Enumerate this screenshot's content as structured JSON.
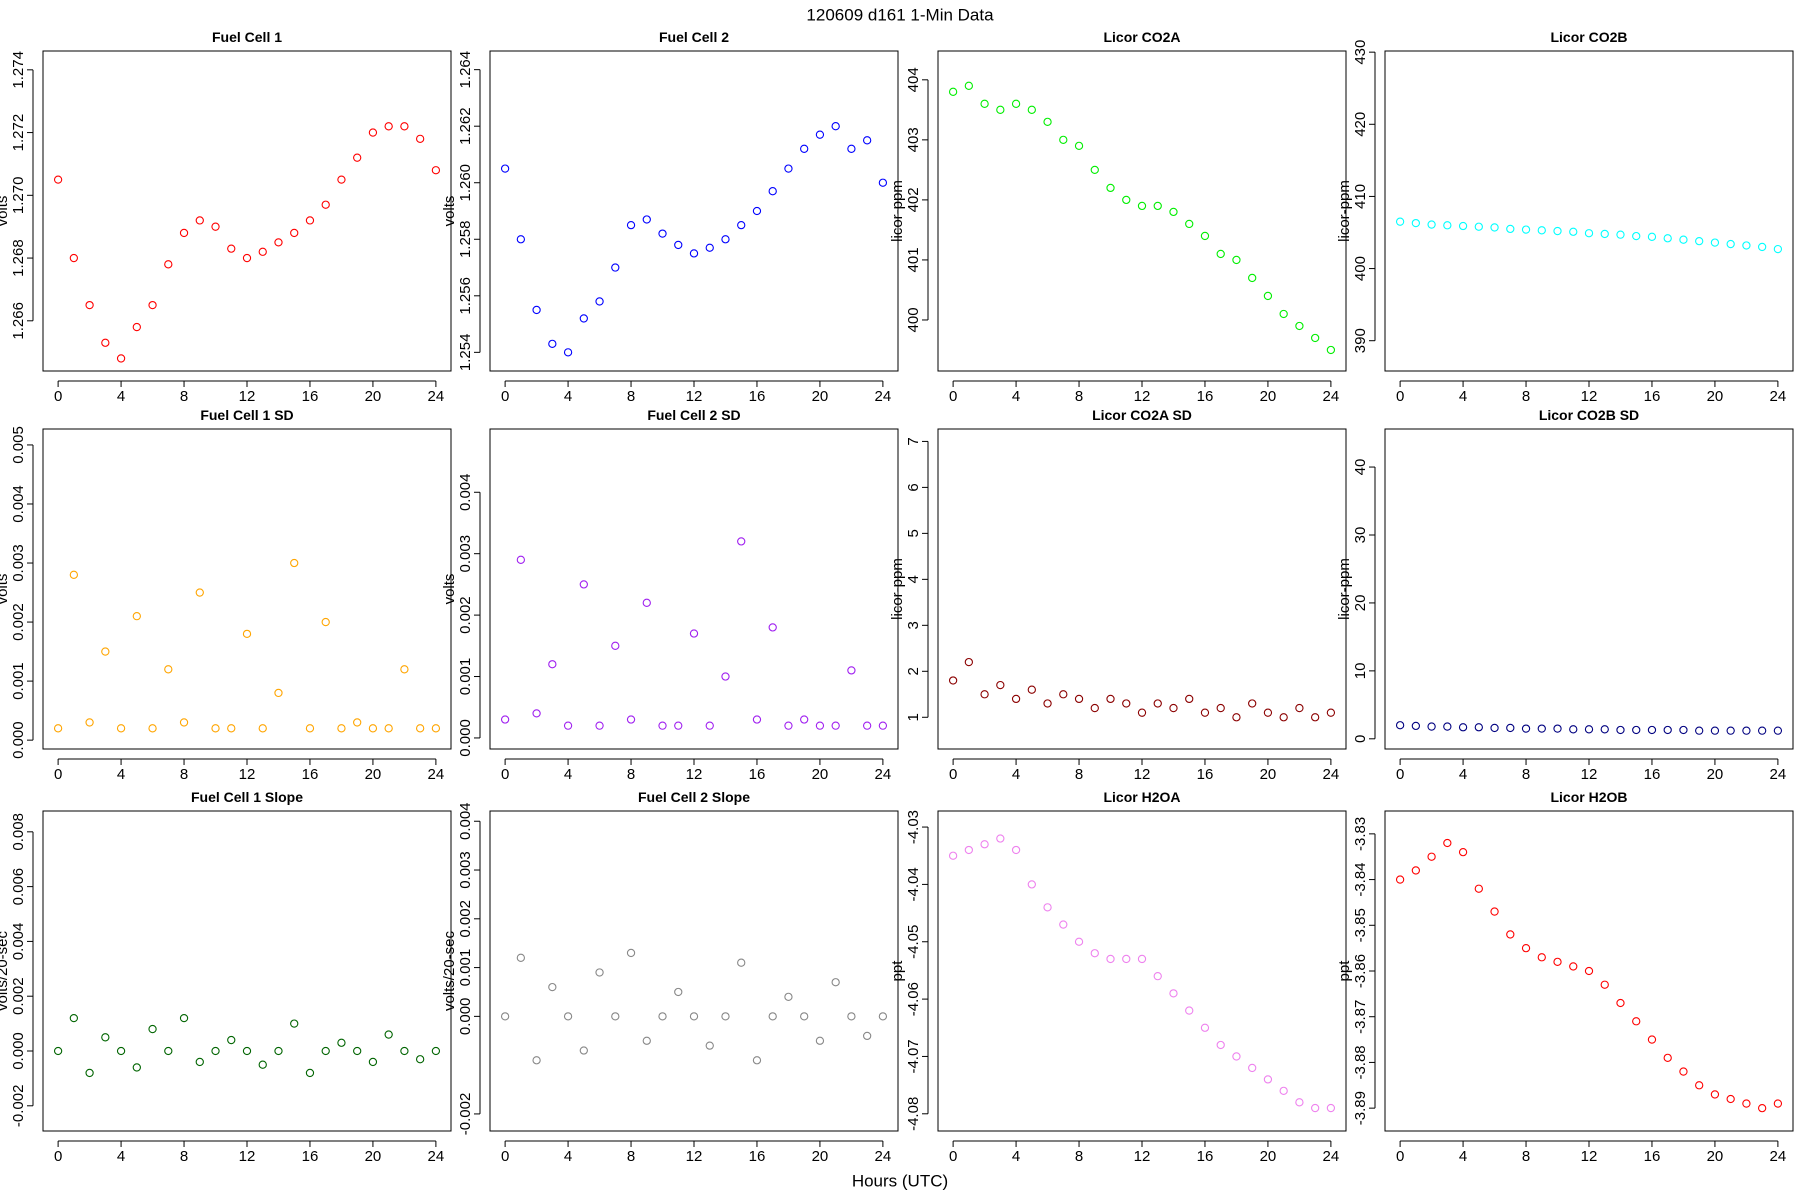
{
  "title": "120609   d161   1-Min Data",
  "xlabel": "Hours (UTC)",
  "chart_data": [
    {
      "type": "scatter",
      "title": "Fuel Cell 1",
      "ylabel": "volts",
      "color": "#ff0000",
      "x": [
        0,
        1,
        2,
        3,
        4,
        5,
        6,
        7,
        8,
        9,
        10,
        11,
        12,
        13,
        14,
        15,
        16,
        17,
        18,
        19,
        20,
        21,
        22,
        23,
        24
      ],
      "values": [
        1.2705,
        1.268,
        1.2665,
        1.2653,
        1.2648,
        1.2658,
        1.2665,
        1.2678,
        1.2688,
        1.2692,
        1.269,
        1.2683,
        1.268,
        1.2682,
        1.2685,
        1.2688,
        1.2692,
        1.2697,
        1.2705,
        1.2712,
        1.272,
        1.2722,
        1.2722,
        1.2718,
        1.2708
      ],
      "xlim": [
        -0.96,
        24.96
      ],
      "xticks": [
        0,
        4,
        8,
        12,
        16,
        20,
        24
      ],
      "ylim": [
        1.2644,
        1.2746
      ],
      "yticks": [
        1.266,
        1.268,
        {
          "value": 1.27,
          "label": "1.270"
        },
        1.272,
        1.274
      ]
    },
    {
      "type": "scatter",
      "title": "Fuel Cell 2",
      "ylabel": "volts",
      "color": "#0000ff",
      "x": [
        0,
        1,
        2,
        3,
        4,
        5,
        6,
        7,
        8,
        9,
        10,
        11,
        12,
        13,
        14,
        15,
        16,
        17,
        18,
        19,
        20,
        21,
        22,
        23,
        24
      ],
      "values": [
        1.2605,
        1.258,
        1.2555,
        1.2543,
        1.254,
        1.2552,
        1.2558,
        1.257,
        1.2585,
        1.2587,
        1.2582,
        1.2578,
        1.2575,
        1.2577,
        1.258,
        1.2585,
        1.259,
        1.2597,
        1.2605,
        1.2612,
        1.2617,
        1.262,
        1.2612,
        1.2615,
        1.26
      ],
      "xlim": [
        -0.96,
        24.96
      ],
      "xticks": [
        0,
        4,
        8,
        12,
        16,
        20,
        24
      ],
      "ylim": [
        1.25334,
        1.26466
      ],
      "yticks": [
        1.254,
        1.256,
        1.258,
        {
          "value": 1.26,
          "label": "1.260"
        },
        1.262,
        1.264
      ]
    },
    {
      "type": "scatter",
      "title": "Licor CO2A",
      "ylabel": "licor-ppm",
      "color": "#00ee00",
      "x": [
        0,
        1,
        2,
        3,
        4,
        5,
        6,
        7,
        8,
        9,
        10,
        11,
        12,
        13,
        14,
        15,
        16,
        17,
        18,
        19,
        20,
        21,
        22,
        23,
        24
      ],
      "values": [
        403.8,
        403.9,
        403.6,
        403.5,
        403.6,
        403.5,
        403.3,
        403.0,
        402.9,
        402.5,
        402.2,
        402.0,
        401.9,
        401.9,
        401.8,
        401.6,
        401.4,
        401.1,
        401.0,
        400.7,
        400.4,
        400.1,
        399.9,
        399.7,
        399.5
      ],
      "xlim": [
        -0.96,
        24.96
      ],
      "xticks": [
        0,
        4,
        8,
        12,
        16,
        20,
        24
      ],
      "ylim": [
        399.15,
        404.48
      ],
      "yticks": [
        400,
        401,
        402,
        403,
        404
      ]
    },
    {
      "type": "scatter",
      "title": "Licor CO2B",
      "ylabel": "licor-ppm",
      "color": "#00ffff",
      "x": [
        0,
        1,
        2,
        3,
        4,
        5,
        6,
        7,
        8,
        9,
        10,
        11,
        12,
        13,
        14,
        15,
        16,
        17,
        18,
        19,
        20,
        21,
        22,
        23,
        24
      ],
      "values": [
        406.5,
        406.3,
        406.1,
        406.0,
        405.9,
        405.8,
        405.7,
        405.5,
        405.4,
        405.3,
        405.2,
        405.1,
        404.9,
        404.8,
        404.7,
        404.5,
        404.4,
        404.2,
        404.0,
        403.8,
        403.6,
        403.4,
        403.2,
        403.0,
        402.7
      ],
      "xlim": [
        -0.96,
        24.96
      ],
      "xticks": [
        0,
        4,
        8,
        12,
        16,
        20,
        24
      ],
      "ylim": [
        385.8,
        430.16
      ],
      "yticks": [
        390,
        400,
        410,
        420,
        430
      ]
    },
    {
      "type": "scatter",
      "title": "Fuel Cell 1 SD",
      "ylabel": "volts",
      "color": "#ffa500",
      "x": [
        0,
        1,
        2,
        3,
        4,
        5,
        6,
        7,
        8,
        9,
        10,
        11,
        12,
        13,
        14,
        15,
        16,
        17,
        18,
        19,
        20,
        21,
        22,
        23,
        24
      ],
      "values": [
        0.0002,
        0.0028,
        0.0003,
        0.0015,
        0.0002,
        0.0021,
        0.0002,
        0.0012,
        0.0003,
        0.0025,
        0.0002,
        0.0002,
        0.0018,
        0.0002,
        0.0008,
        0.003,
        0.0002,
        0.002,
        0.0002,
        0.0003,
        0.0002,
        0.0002,
        0.0012,
        0.0002,
        0.0002
      ],
      "xlim": [
        -0.96,
        24.96
      ],
      "xticks": [
        0,
        4,
        8,
        12,
        16,
        20,
        24
      ],
      "ylim": [
        -0.00015,
        0.00527
      ],
      "yticks": [
        {
          "value": 0,
          "label": "0.000"
        },
        0.001,
        0.002,
        0.003,
        0.004,
        0.005
      ]
    },
    {
      "type": "scatter",
      "title": "Fuel Cell 2 SD",
      "ylabel": "volts",
      "color": "#a020f0",
      "x": [
        0,
        1,
        2,
        3,
        4,
        5,
        6,
        7,
        8,
        9,
        10,
        11,
        12,
        13,
        14,
        15,
        16,
        17,
        18,
        19,
        20,
        21,
        22,
        23,
        24
      ],
      "values": [
        0.0003,
        0.0029,
        0.0004,
        0.0012,
        0.0002,
        0.0025,
        0.0002,
        0.0015,
        0.0003,
        0.0022,
        0.0002,
        0.0002,
        0.0017,
        0.0002,
        0.001,
        0.0032,
        0.0003,
        0.0018,
        0.0002,
        0.0003,
        0.0002,
        0.0002,
        0.0011,
        0.0002,
        0.0002
      ],
      "xlim": [
        -0.96,
        24.96
      ],
      "xticks": [
        0,
        4,
        8,
        12,
        16,
        20,
        24
      ],
      "ylim": [
        -0.00018,
        0.00503
      ],
      "yticks": [
        {
          "value": 0,
          "label": "0.000"
        },
        0.001,
        0.002,
        0.003,
        0.004
      ]
    },
    {
      "type": "scatter",
      "title": "Licor CO2A SD",
      "ylabel": "licor-ppm",
      "color": "#8b0000",
      "x": [
        0,
        1,
        2,
        3,
        4,
        5,
        6,
        7,
        8,
        9,
        10,
        11,
        12,
        13,
        14,
        15,
        16,
        17,
        18,
        19,
        20,
        21,
        22,
        23,
        24
      ],
      "values": [
        1.8,
        2.2,
        1.5,
        1.7,
        1.4,
        1.6,
        1.3,
        1.5,
        1.4,
        1.2,
        1.4,
        1.3,
        1.1,
        1.3,
        1.2,
        1.4,
        1.1,
        1.2,
        1.0,
        1.3,
        1.1,
        1.0,
        1.2,
        1.0,
        1.1
      ],
      "xlim": [
        -0.96,
        24.96
      ],
      "xticks": [
        0,
        4,
        8,
        12,
        16,
        20,
        24
      ],
      "ylim": [
        0.31,
        7.27
      ],
      "yticks": [
        1,
        2,
        3,
        4,
        5,
        6,
        7
      ]
    },
    {
      "type": "scatter",
      "title": "Licor CO2B SD",
      "ylabel": "licor-ppm",
      "color": "#000080",
      "x": [
        0,
        1,
        2,
        3,
        4,
        5,
        6,
        7,
        8,
        9,
        10,
        11,
        12,
        13,
        14,
        15,
        16,
        17,
        18,
        19,
        20,
        21,
        22,
        23,
        24
      ],
      "values": [
        2.0,
        1.9,
        1.8,
        1.8,
        1.7,
        1.7,
        1.6,
        1.6,
        1.5,
        1.5,
        1.5,
        1.4,
        1.4,
        1.4,
        1.3,
        1.3,
        1.3,
        1.3,
        1.3,
        1.2,
        1.2,
        1.2,
        1.2,
        1.2,
        1.2
      ],
      "xlim": [
        -0.96,
        24.96
      ],
      "xticks": [
        0,
        4,
        8,
        12,
        16,
        20,
        24
      ],
      "ylim": [
        -1.5,
        45.6
      ],
      "yticks": [
        0,
        10,
        20,
        30,
        40
      ]
    },
    {
      "type": "scatter",
      "title": "Fuel Cell 1 Slope",
      "ylabel": "volts/20-sec",
      "color": "#006400",
      "x": [
        0,
        1,
        2,
        3,
        4,
        5,
        6,
        7,
        8,
        9,
        10,
        11,
        12,
        13,
        14,
        15,
        16,
        17,
        18,
        19,
        20,
        21,
        22,
        23,
        24
      ],
      "values": [
        0.0,
        0.0012,
        -0.0008,
        0.0005,
        0.0,
        -0.0006,
        0.0008,
        0.0,
        0.0012,
        -0.0004,
        0.0,
        0.0004,
        0.0,
        -0.0005,
        0.0,
        0.001,
        -0.0008,
        0.0,
        0.0003,
        0.0,
        -0.0004,
        0.0006,
        0.0,
        -0.0003,
        0.0
      ],
      "xlim": [
        -0.96,
        24.96
      ],
      "xticks": [
        0,
        4,
        8,
        12,
        16,
        20,
        24
      ],
      "ylim": [
        -0.00292,
        0.00876
      ],
      "yticks": [
        -0.002,
        {
          "value": 0,
          "label": "0.000"
        },
        0.002,
        0.004,
        0.006,
        0.008
      ]
    },
    {
      "type": "scatter",
      "title": "Fuel Cell 2 Slope",
      "ylabel": "volts/20-sec",
      "color": "#888888",
      "x": [
        0,
        1,
        2,
        3,
        4,
        5,
        6,
        7,
        8,
        9,
        10,
        11,
        12,
        13,
        14,
        15,
        16,
        17,
        18,
        19,
        20,
        21,
        22,
        23,
        24
      ],
      "values": [
        0.0,
        0.0012,
        -0.0009,
        0.0006,
        0.0,
        -0.0007,
        0.0009,
        0.0,
        0.0013,
        -0.0005,
        0.0,
        0.0005,
        0.0,
        -0.0006,
        0.0,
        0.0011,
        -0.0009,
        0.0,
        0.0004,
        0.0,
        -0.0005,
        0.0007,
        0.0,
        -0.0004,
        0.0
      ],
      "xlim": [
        -0.96,
        24.96
      ],
      "xticks": [
        0,
        4,
        8,
        12,
        16,
        20,
        24
      ],
      "ylim": [
        -0.00235,
        0.00421
      ],
      "yticks": [
        -0.002,
        {
          "value": 0,
          "label": "0.000"
        },
        0.001,
        0.002,
        0.003,
        0.004
      ]
    },
    {
      "type": "scatter",
      "title": "Licor H2OA",
      "ylabel": "ppt",
      "color": "#ee82ee",
      "x": [
        0,
        1,
        2,
        3,
        4,
        5,
        6,
        7,
        8,
        9,
        10,
        11,
        12,
        13,
        14,
        15,
        16,
        17,
        18,
        19,
        20,
        21,
        22,
        23,
        24
      ],
      "values": [
        -4.035,
        -4.034,
        -4.033,
        -4.032,
        -4.034,
        -4.04,
        -4.044,
        -4.047,
        -4.05,
        -4.052,
        -4.053,
        -4.053,
        -4.053,
        -4.056,
        -4.059,
        -4.062,
        -4.065,
        -4.068,
        -4.07,
        -4.072,
        -4.074,
        -4.076,
        -4.078,
        -4.079,
        -4.079
      ],
      "xlim": [
        -0.96,
        24.96
      ],
      "xticks": [
        0,
        4,
        8,
        12,
        16,
        20,
        24
      ],
      "ylim": [
        -4.083,
        -4.0272
      ],
      "yticks": [
        -4.08,
        -4.07,
        -4.06,
        -4.05,
        -4.04,
        -4.03
      ]
    },
    {
      "type": "scatter",
      "title": "Licor H2OB",
      "ylabel": "ppt",
      "color": "#ff0000",
      "x": [
        0,
        1,
        2,
        3,
        4,
        5,
        6,
        7,
        8,
        9,
        10,
        11,
        12,
        13,
        14,
        15,
        16,
        17,
        18,
        19,
        20,
        21,
        22,
        23,
        24
      ],
      "values": [
        -3.84,
        -3.838,
        -3.835,
        -3.832,
        -3.834,
        -3.842,
        -3.847,
        -3.852,
        -3.855,
        -3.857,
        -3.858,
        -3.859,
        -3.86,
        -3.863,
        -3.867,
        -3.871,
        -3.875,
        -3.879,
        -3.882,
        -3.885,
        -3.887,
        -3.888,
        -3.889,
        -3.89,
        -3.889
      ],
      "xlim": [
        -0.96,
        24.96
      ],
      "xticks": [
        0,
        4,
        8,
        12,
        16,
        20,
        24
      ],
      "ylim": [
        -3.895,
        -3.825
      ],
      "yticks": [
        -3.89,
        -3.88,
        -3.87,
        -3.86,
        -3.85,
        -3.84,
        -3.83
      ]
    }
  ]
}
